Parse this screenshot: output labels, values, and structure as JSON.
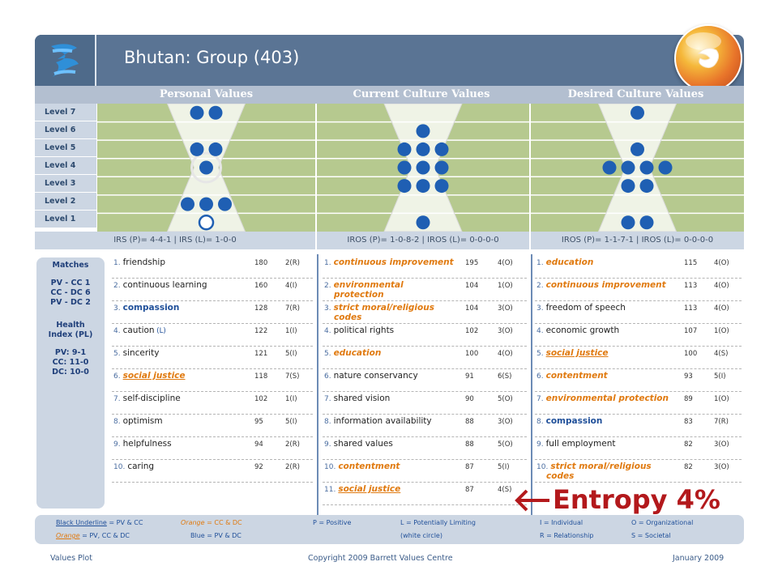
{
  "header": {
    "title": "Bhutan: Group (403)"
  },
  "columns": [
    {
      "label": "Personal Values"
    },
    {
      "label": "Current Culture Values"
    },
    {
      "label": "Desired Culture Values"
    }
  ],
  "levels": [
    "Level 7",
    "Level 6",
    "Level 5",
    "Level 4",
    "Level 3",
    "Level 2",
    "Level 1"
  ],
  "level_distribution": {
    "personal": [
      {
        "level": 7,
        "count": 2,
        "empty": 0
      },
      {
        "level": 5,
        "count": 2,
        "empty": 0
      },
      {
        "level": 4,
        "count": 1,
        "empty": 0
      },
      {
        "level": 2,
        "count": 3,
        "empty": 0
      },
      {
        "level": 1,
        "count": 1,
        "empty": 1
      }
    ],
    "current": [
      {
        "level": 6,
        "count": 1,
        "empty": 0
      },
      {
        "level": 5,
        "count": 3,
        "empty": 0
      },
      {
        "level": 4,
        "count": 3,
        "empty": 0
      },
      {
        "level": 3,
        "count": 3,
        "empty": 0
      },
      {
        "level": 1,
        "count": 1,
        "empty": 0
      }
    ],
    "desired": [
      {
        "level": 7,
        "count": 1,
        "empty": 0
      },
      {
        "level": 5,
        "count": 1,
        "empty": 0
      },
      {
        "level": 4,
        "count": 4,
        "empty": 0
      },
      {
        "level": 3,
        "count": 2,
        "empty": 0
      },
      {
        "level": 1,
        "count": 2,
        "empty": 0
      }
    ]
  },
  "indices": {
    "personal": "IRS (P)= 4-4-1 | IRS (L)= 1-0-0",
    "current": "IROS (P)= 1-0-8-2 | IROS (L)= 0-0-0-0",
    "desired": "IROS (P)= 1-1-7-1 | IROS (L)= 0-0-0-0"
  },
  "sidebar": {
    "matches_title": "Matches",
    "matches": [
      "PV - CC   1",
      "CC - DC   6",
      "PV - DC   2"
    ],
    "health_title_1": "Health",
    "health_title_2": "Index (PL)",
    "health": [
      "PV: 9-1",
      "CC: 11-0",
      "DC: 10-0"
    ]
  },
  "personal_values": [
    {
      "num": "1.",
      "label": "friendship",
      "votes": "180",
      "code": "2(R)",
      "style": "plain"
    },
    {
      "num": "2.",
      "label": "continuous learning",
      "votes": "160",
      "code": "4(I)",
      "style": "plain"
    },
    {
      "num": "3.",
      "label": "compassion",
      "votes": "128",
      "code": "7(R)",
      "style": "blue"
    },
    {
      "num": "4.",
      "label": "caution",
      "sub": "(L)",
      "votes": "122",
      "code": "1(I)",
      "style": "plain"
    },
    {
      "num": "5.",
      "label": "sincerity",
      "votes": "121",
      "code": "5(I)",
      "style": "plain"
    },
    {
      "num": "6.",
      "label": "social justice",
      "votes": "118",
      "code": "7(S)",
      "style": "orange-u"
    },
    {
      "num": "7.",
      "label": "self-discipline",
      "votes": "102",
      "code": "1(I)",
      "style": "plain"
    },
    {
      "num": "8.",
      "label": "optimism",
      "votes": "95",
      "code": "5(I)",
      "style": "plain"
    },
    {
      "num": "9.",
      "label": "helpfulness",
      "votes": "94",
      "code": "2(R)",
      "style": "plain"
    },
    {
      "num": "10.",
      "label": "caring",
      "votes": "92",
      "code": "2(R)",
      "style": "plain"
    }
  ],
  "current_values": [
    {
      "num": "1.",
      "label": "continuous improvement",
      "votes": "195",
      "code": "4(O)",
      "style": "orange"
    },
    {
      "num": "2.",
      "label": "environmental",
      "label2": "protection",
      "votes": "104",
      "code": "1(O)",
      "style": "orange"
    },
    {
      "num": "3.",
      "label": "strict moral/religious",
      "label2": "codes",
      "votes": "104",
      "code": "3(O)",
      "style": "orange"
    },
    {
      "num": "4.",
      "label": "political rights",
      "votes": "102",
      "code": "3(O)",
      "style": "plain"
    },
    {
      "num": "5.",
      "label": "education",
      "votes": "100",
      "code": "4(O)",
      "style": "orange"
    },
    {
      "num": "6.",
      "label": "nature conservancy",
      "votes": "91",
      "code": "6(S)",
      "style": "plain"
    },
    {
      "num": "7.",
      "label": "shared vision",
      "votes": "90",
      "code": "5(O)",
      "style": "plain"
    },
    {
      "num": "8.",
      "label": "information availability",
      "votes": "88",
      "code": "3(O)",
      "style": "plain"
    },
    {
      "num": "9.",
      "label": "shared values",
      "votes": "88",
      "code": "5(O)",
      "style": "plain"
    },
    {
      "num": "10.",
      "label": "contentment",
      "votes": "87",
      "code": "5(I)",
      "style": "orange"
    },
    {
      "num": "11.",
      "label": "social justice",
      "votes": "87",
      "code": "4(S)",
      "style": "orange-u"
    }
  ],
  "desired_values": [
    {
      "num": "1.",
      "label": "education",
      "votes": "115",
      "code": "4(O)",
      "style": "orange"
    },
    {
      "num": "2.",
      "label": "continuous improvement",
      "votes": "113",
      "code": "4(O)",
      "style": "orange"
    },
    {
      "num": "3.",
      "label": "freedom of speech",
      "votes": "113",
      "code": "4(O)",
      "style": "plain"
    },
    {
      "num": "4.",
      "label": "economic growth",
      "votes": "107",
      "code": "1(O)",
      "style": "plain"
    },
    {
      "num": "5.",
      "label": "social justice",
      "votes": "100",
      "code": "4(S)",
      "style": "orange-u"
    },
    {
      "num": "6.",
      "label": "contentment",
      "votes": "93",
      "code": "5(I)",
      "style": "orange"
    },
    {
      "num": "7.",
      "label": "environmental protection",
      "votes": "89",
      "code": "1(O)",
      "style": "orange"
    },
    {
      "num": "8.",
      "label": "compassion",
      "votes": "83",
      "code": "7(R)",
      "style": "blue"
    },
    {
      "num": "9.",
      "label": "full employment",
      "votes": "82",
      "code": "3(O)",
      "style": "plain"
    },
    {
      "num": "10.",
      "label": "strict moral/religious",
      "label2": "codes",
      "votes": "82",
      "code": "3(O)",
      "style": "orange"
    }
  ],
  "entropy": {
    "label": "Entropy 4%",
    "color": "#b3191c"
  },
  "legend": {
    "black_underline": "Black Underline",
    "black_underline_desc": " = PV & CC",
    "orange_cc_dc": "Orange",
    "orange_cc_dc_desc": " = CC & DC",
    "p_positive": "P = Positive",
    "l_limiting": "L = Potentially Limiting",
    "white_circle": "(white circle)",
    "i_individual": "I = Individual",
    "o_org": "O = Organizational",
    "orange_all": "Orange",
    "orange_all_desc": " = PV, CC & DC",
    "blue_pv_dc": "Blue = PV & DC",
    "r_rel": "R = Relationship",
    "s_soc": "S = Societal"
  },
  "footer": {
    "left": "Values Plot",
    "center": "Copyright 2009 Barrett Values Centre",
    "right": "January 2009"
  },
  "colors": {
    "header": "#5a7494",
    "grid_green": "#b6c98f",
    "dot_blue": "#1f5fb3",
    "orange": "#e07a10",
    "blue_text": "#1f4f99"
  }
}
